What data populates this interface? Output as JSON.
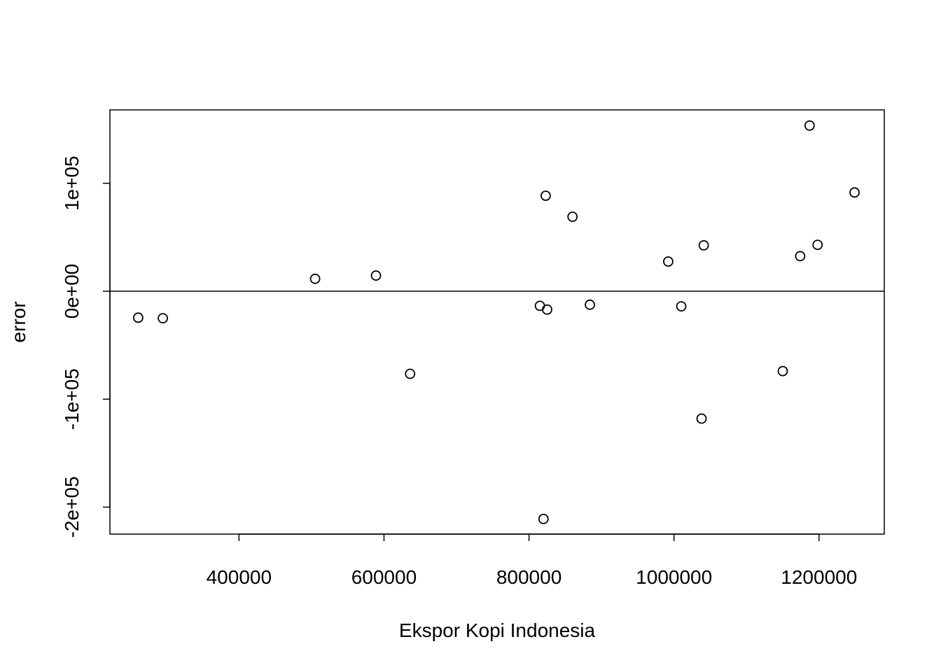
{
  "chart_data": {
    "type": "scatter",
    "title": "",
    "xlabel": "Ekspor Kopi Indonesia",
    "ylabel": "error",
    "xlim": [
      222000,
      1290000
    ],
    "ylim": [
      -225000,
      168000
    ],
    "x_ticks": [
      {
        "value": 400000,
        "label": "400000"
      },
      {
        "value": 600000,
        "label": "600000"
      },
      {
        "value": 800000,
        "label": "800000"
      },
      {
        "value": 1000000,
        "label": "1000000"
      },
      {
        "value": 1200000,
        "label": "1200000"
      }
    ],
    "y_ticks": [
      {
        "value": -200000,
        "label": "-2e+05"
      },
      {
        "value": -100000,
        "label": "-1e+05"
      },
      {
        "value": 0,
        "label": "0e+00"
      },
      {
        "value": 100000,
        "label": "1e+05"
      }
    ],
    "reference_line": {
      "y": 0
    },
    "grid": false,
    "points": [
      {
        "x": 261000,
        "y": -24500
      },
      {
        "x": 295000,
        "y": -25000
      },
      {
        "x": 505000,
        "y": 11500
      },
      {
        "x": 589000,
        "y": 14500
      },
      {
        "x": 636000,
        "y": -76500
      },
      {
        "x": 815000,
        "y": -13500
      },
      {
        "x": 820000,
        "y": -211000
      },
      {
        "x": 823000,
        "y": 88500
      },
      {
        "x": 825000,
        "y": -17000
      },
      {
        "x": 860000,
        "y": 69000
      },
      {
        "x": 884000,
        "y": -12500
      },
      {
        "x": 992000,
        "y": 27500
      },
      {
        "x": 1010000,
        "y": -14000
      },
      {
        "x": 1038000,
        "y": -118000
      },
      {
        "x": 1041000,
        "y": 42500
      },
      {
        "x": 1150000,
        "y": -74000
      },
      {
        "x": 1174000,
        "y": 32500
      },
      {
        "x": 1187000,
        "y": 153500
      },
      {
        "x": 1198000,
        "y": 43000
      },
      {
        "x": 1249000,
        "y": 91500
      }
    ]
  }
}
